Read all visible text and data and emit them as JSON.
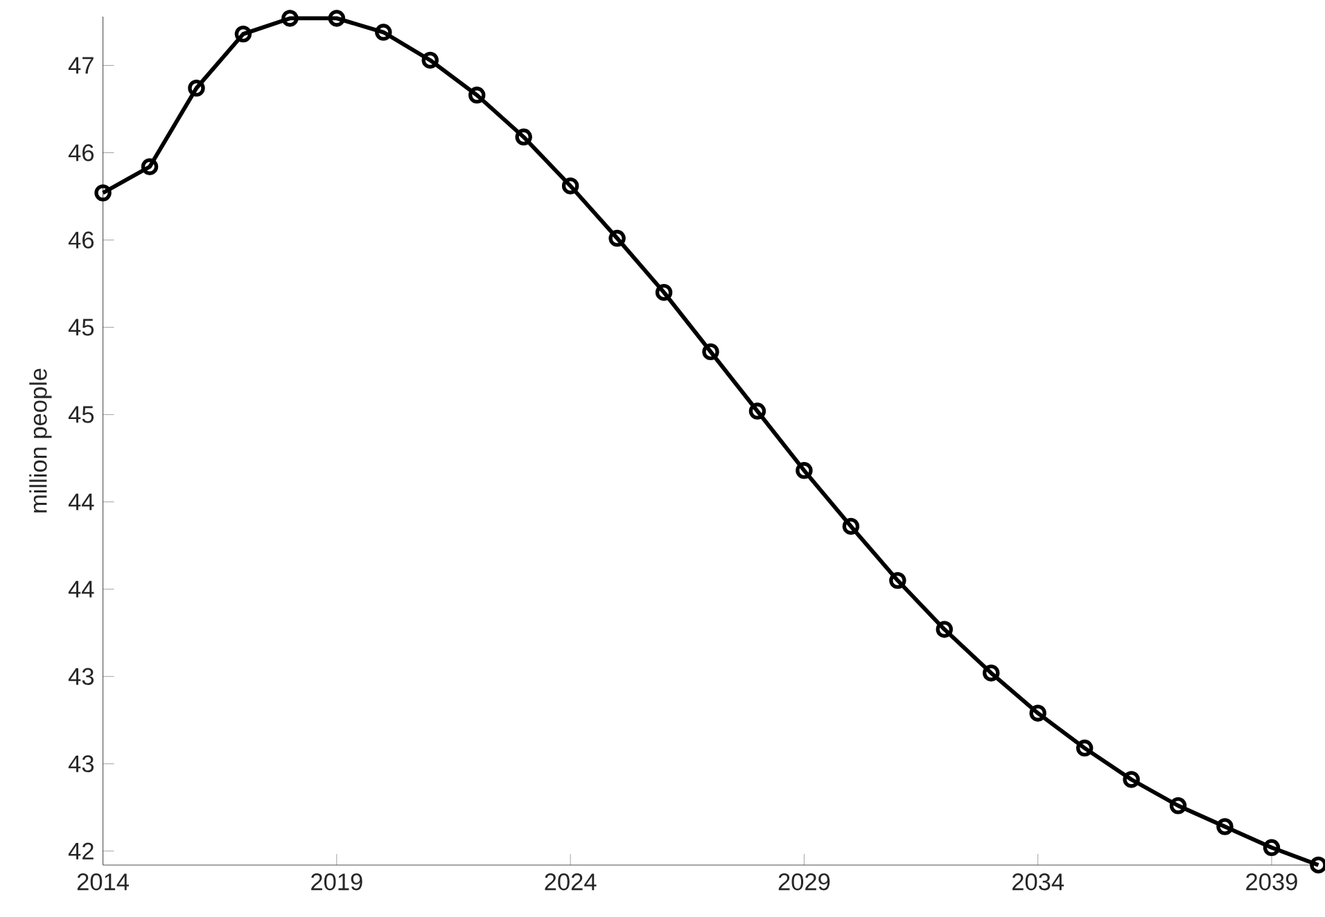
{
  "chart_data": {
    "type": "line",
    "ylabel": "million people",
    "x": [
      2014,
      2015,
      2016,
      2017,
      2018,
      2019,
      2020,
      2021,
      2022,
      2023,
      2024,
      2025,
      2026,
      2027,
      2028,
      2029,
      2030,
      2031,
      2032,
      2033,
      2034,
      2035,
      2036,
      2037,
      2038,
      2039,
      2040
    ],
    "series": [
      {
        "color": "#000000",
        "values": [
          45.77,
          45.92,
          46.37,
          46.68,
          46.77,
          46.77,
          46.69,
          46.53,
          46.33,
          46.09,
          45.81,
          45.51,
          45.2,
          44.86,
          44.52,
          44.18,
          43.86,
          43.55,
          43.27,
          43.02,
          42.79,
          42.59,
          42.41,
          42.26,
          42.14,
          42.02,
          41.92
        ]
      }
    ],
    "xlim": [
      2014,
      2040
    ],
    "ylim": [
      41.92,
      46.78
    ],
    "xticks": [
      2014,
      2019,
      2024,
      2029,
      2034,
      2039
    ],
    "yticks": [
      42,
      {
        "value": 42.5,
        "label": "43"
      },
      43,
      {
        "value": 43.5,
        "label": "44"
      },
      44,
      {
        "value": 44.5,
        "label": "45"
      },
      45,
      {
        "value": 45.5,
        "label": "46"
      },
      46,
      {
        "value": 46.5,
        "label": "47"
      }
    ],
    "marker": "circle",
    "line_style": "solid"
  }
}
